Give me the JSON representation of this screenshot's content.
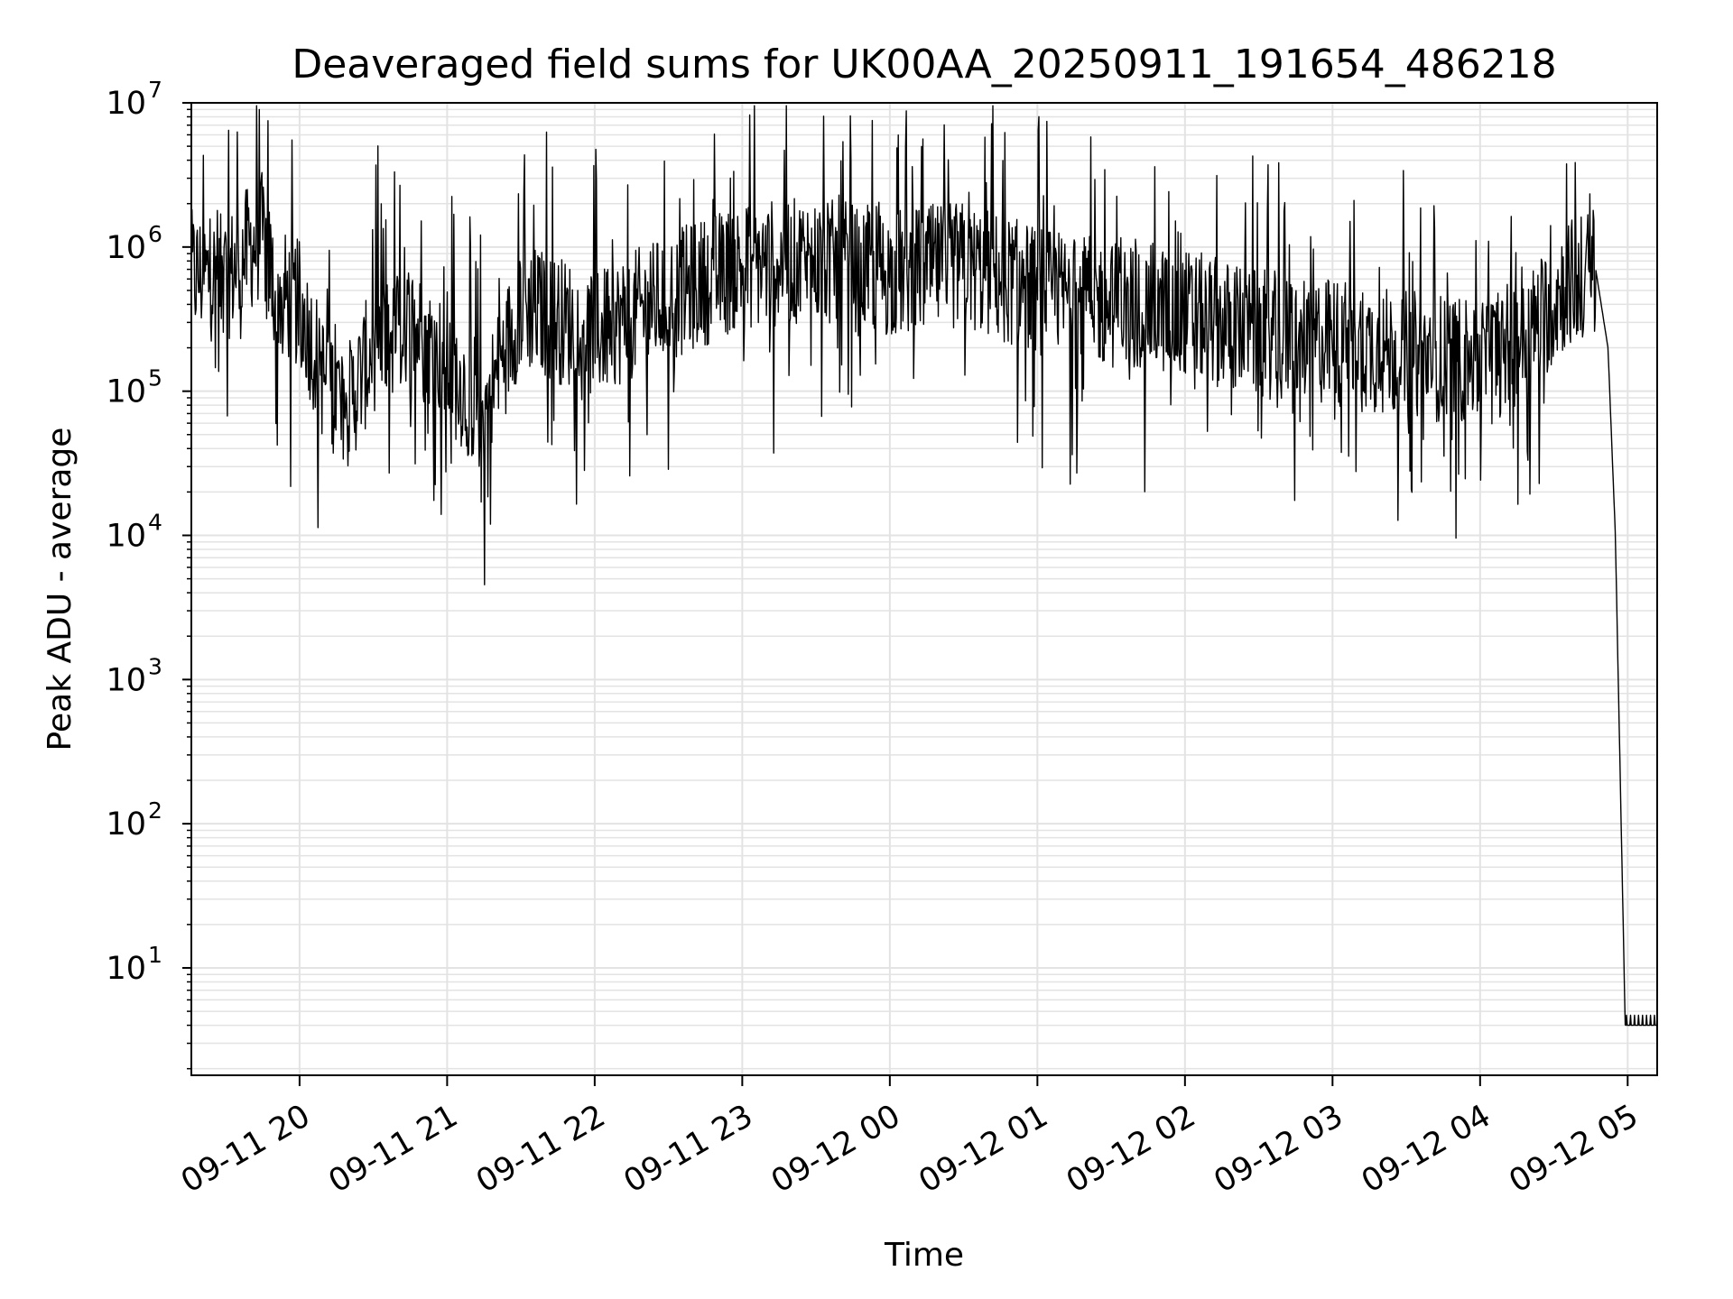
{
  "chart_data": {
    "type": "line",
    "title": "Deaveraged field sums for UK00AA_20250911_191654_486218",
    "xlabel": "Time",
    "ylabel": "Peak ADU - average",
    "x_axis": {
      "kind": "datetime",
      "range": [
        "2025-09-11 19:16",
        "2025-09-12 05:12"
      ],
      "ticks": [
        "2025-09-11 20:00",
        "2025-09-11 21:00",
        "2025-09-11 22:00",
        "2025-09-11 23:00",
        "2025-09-12 00:00",
        "2025-09-12 01:00",
        "2025-09-12 02:00",
        "2025-09-12 03:00",
        "2025-09-12 04:00",
        "2025-09-12 05:00"
      ],
      "tick_labels": [
        "09-11 20",
        "09-11 21",
        "09-11 22",
        "09-11 23",
        "09-12 00",
        "09-12 01",
        "09-12 02",
        "09-12 03",
        "09-12 04",
        "09-12 05"
      ],
      "tick_label_rotation_deg": 30
    },
    "y_axis": {
      "scale": "log",
      "range": [
        1.8,
        10000000
      ],
      "ticks": [
        10,
        100,
        1000,
        10000,
        100000,
        1000000,
        10000000
      ],
      "tick_labels": [
        {
          "base": "10",
          "exp": "1"
        },
        {
          "base": "10",
          "exp": "2"
        },
        {
          "base": "10",
          "exp": "3"
        },
        {
          "base": "10",
          "exp": "4"
        },
        {
          "base": "10",
          "exp": "5"
        },
        {
          "base": "10",
          "exp": "6"
        },
        {
          "base": "10",
          "exp": "7"
        }
      ],
      "minor_ticks": true
    },
    "grid": true,
    "grid_minor": true,
    "legend": "none",
    "colors": {
      "line": "#000000",
      "grid": "#e3e3e3",
      "axes": "#000000"
    },
    "series": [
      {
        "values": [
          [
            "2025-09-11 19:16",
            650000
          ],
          [
            "2025-09-11 19:30",
            600000
          ],
          [
            "2025-09-11 19:40",
            1000000
          ],
          [
            "2025-09-11 19:45",
            1200000
          ],
          [
            "2025-09-11 19:50",
            500000
          ],
          [
            "2025-09-11 20:00",
            400000
          ],
          [
            "2025-09-11 20:10",
            120000
          ],
          [
            "2025-09-11 20:20",
            80000
          ],
          [
            "2025-09-11 20:30",
            200000
          ],
          [
            "2025-09-11 20:45",
            300000
          ],
          [
            "2025-09-11 21:00",
            150000
          ],
          [
            "2025-09-11 21:15",
            70000
          ],
          [
            "2025-09-11 21:30",
            400000
          ],
          [
            "2025-09-11 22:00",
            250000
          ],
          [
            "2025-09-11 22:30",
            450000
          ],
          [
            "2025-09-11 23:00",
            750000
          ],
          [
            "2025-09-11 23:30",
            800000
          ],
          [
            "2025-09-12 00:00",
            650000
          ],
          [
            "2025-09-12 00:30",
            750000
          ],
          [
            "2025-09-12 01:00",
            500000
          ],
          [
            "2025-09-12 01:30",
            400000
          ],
          [
            "2025-09-12 02:00",
            350000
          ],
          [
            "2025-09-12 02:30",
            250000
          ],
          [
            "2025-09-12 03:00",
            220000
          ],
          [
            "2025-09-12 03:30",
            180000
          ],
          [
            "2025-09-12 04:00",
            160000
          ],
          [
            "2025-09-12 04:20",
            250000
          ],
          [
            "2025-09-12 04:35",
            550000
          ],
          [
            "2025-09-12 04:47",
            700000
          ],
          [
            "2025-09-12 04:52",
            200000
          ],
          [
            "2025-09-12 04:55",
            10000
          ],
          [
            "2025-09-12 04:59",
            4
          ],
          [
            "2025-09-12 05:12",
            4
          ]
        ]
      }
    ]
  }
}
